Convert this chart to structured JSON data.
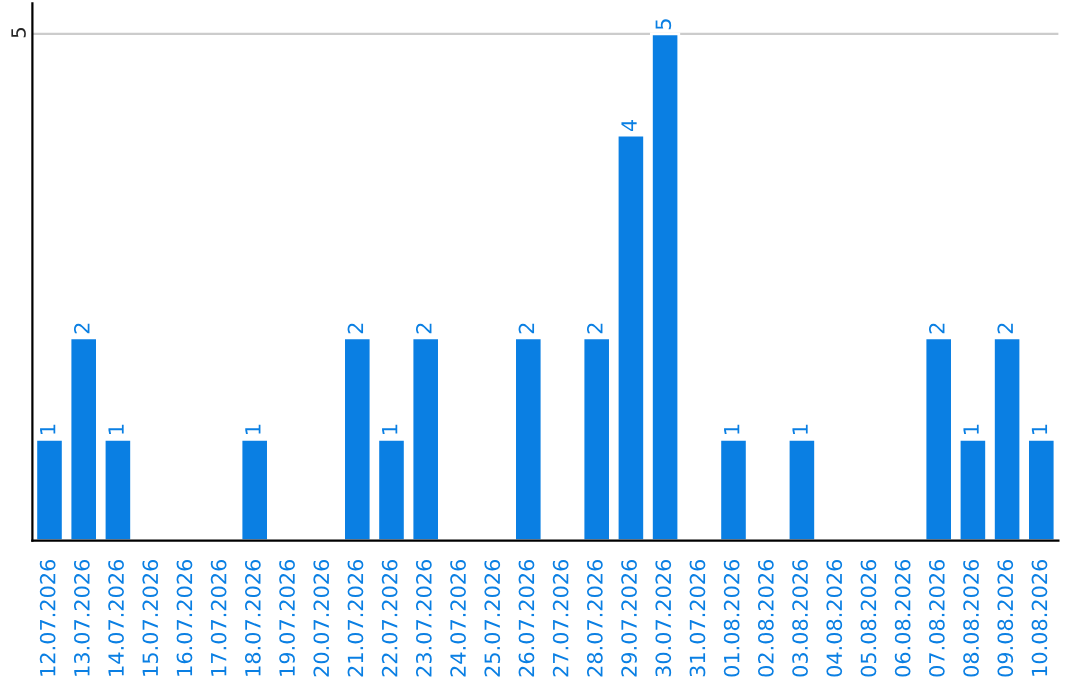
{
  "chart_data": {
    "type": "bar",
    "categories": [
      "12.07.2026",
      "13.07.2026",
      "14.07.2026",
      "15.07.2026",
      "16.07.2026",
      "17.07.2026",
      "18.07.2026",
      "19.07.2026",
      "20.07.2026",
      "21.07.2026",
      "22.07.2026",
      "23.07.2026",
      "24.07.2026",
      "25.07.2026",
      "26.07.2026",
      "27.07.2026",
      "28.07.2026",
      "29.07.2026",
      "30.07.2026",
      "31.07.2026",
      "01.08.2026",
      "02.08.2026",
      "03.08.2026",
      "04.08.2026",
      "05.08.2026",
      "06.08.2026",
      "07.08.2026",
      "08.08.2026",
      "09.08.2026",
      "10.08.2026"
    ],
    "values": [
      1,
      2,
      1,
      0,
      0,
      0,
      1,
      0,
      0,
      2,
      1,
      2,
      0,
      0,
      2,
      0,
      2,
      4,
      5,
      0,
      1,
      0,
      1,
      0,
      0,
      0,
      2,
      1,
      2,
      1
    ],
    "value_labels": [
      "1",
      "2",
      "1",
      null,
      null,
      null,
      "1",
      null,
      null,
      "2",
      "1",
      "2",
      null,
      null,
      "2",
      null,
      "2",
      "4",
      "5",
      null,
      "1",
      null,
      "1",
      null,
      null,
      null,
      "2",
      "1",
      "2",
      "1"
    ],
    "color": "#0a7fe3",
    "ylim": [
      0,
      5.3
    ],
    "yticks": [
      5
    ],
    "grid": "y"
  }
}
